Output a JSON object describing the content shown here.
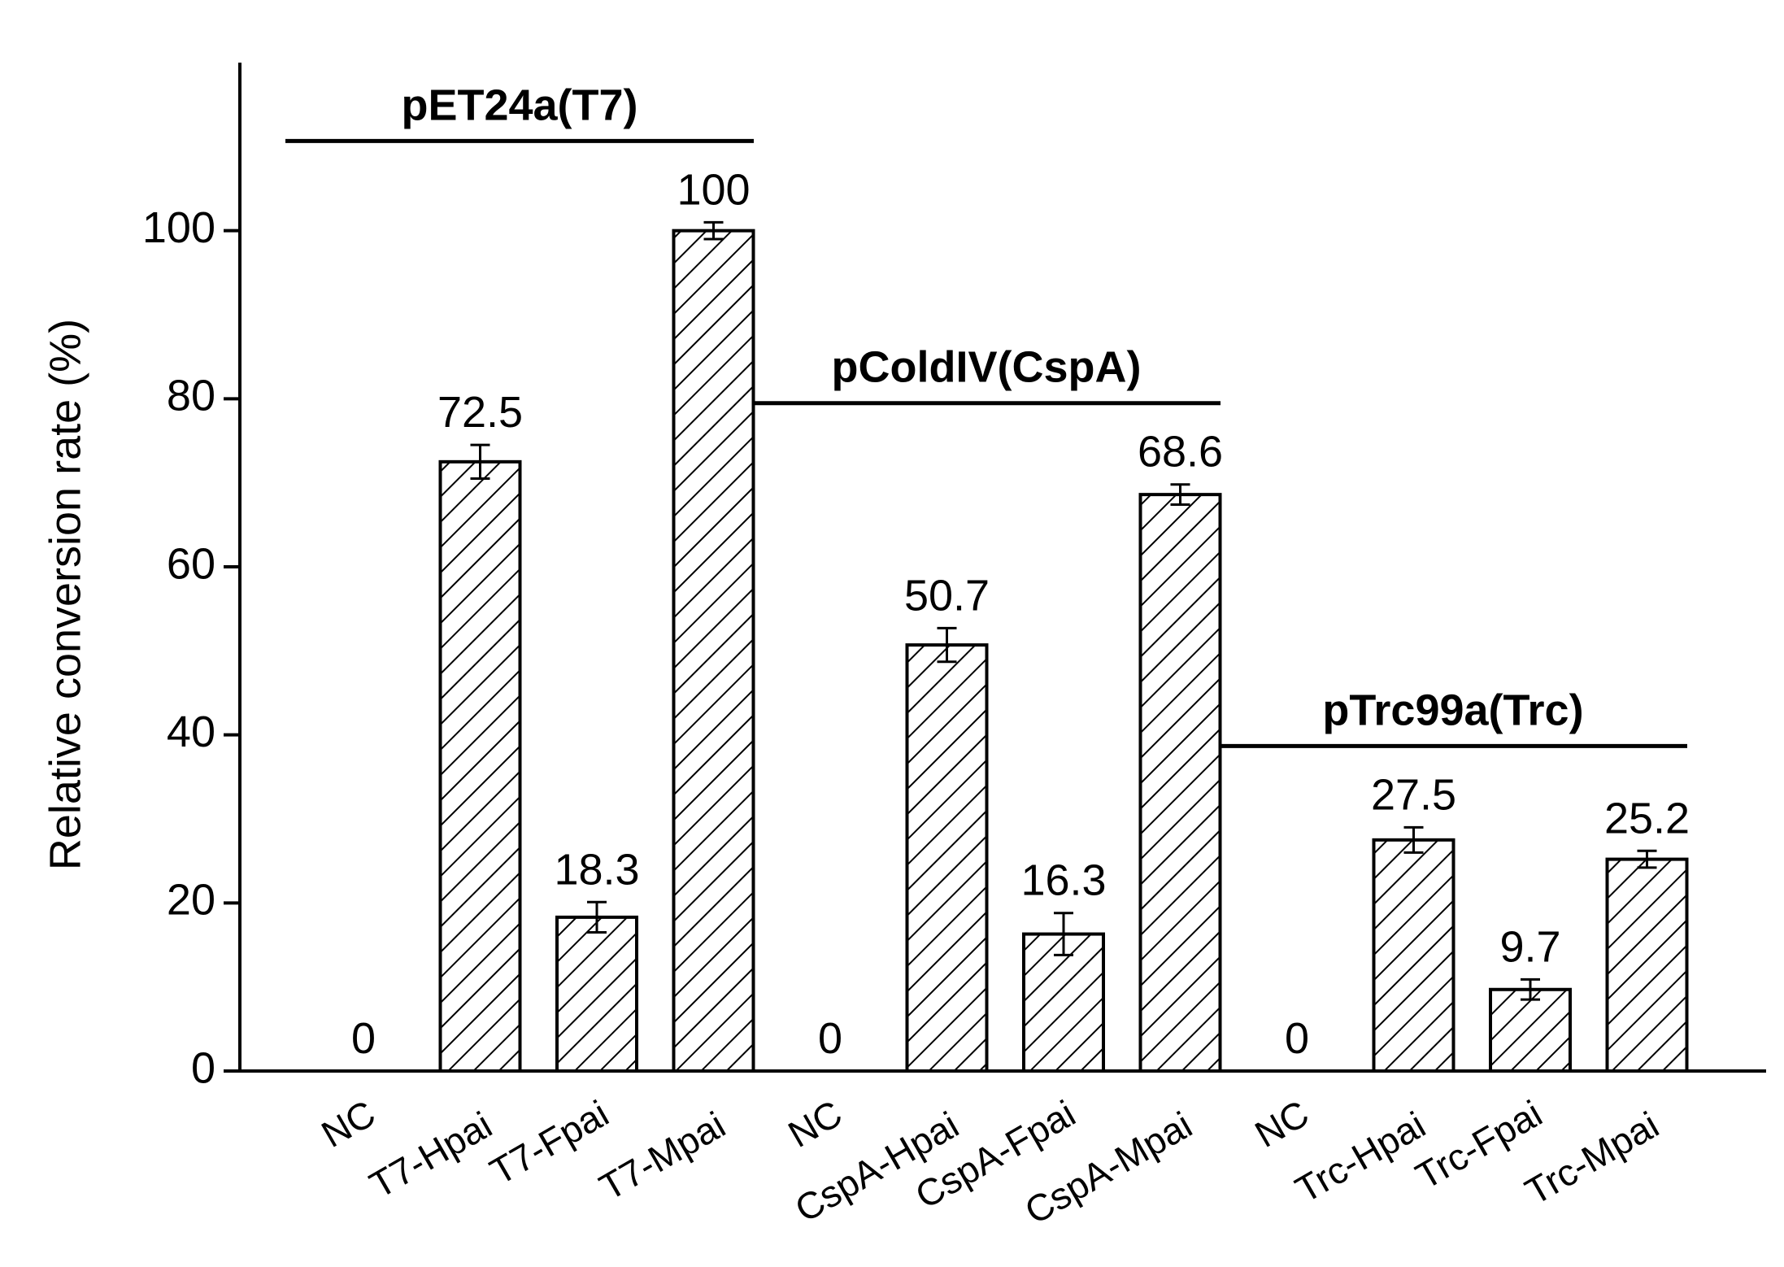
{
  "chart_data": {
    "type": "bar",
    "y_label": "Relative conversion rate (%)",
    "ylim": [
      0,
      120
    ],
    "yticks": [
      0,
      20,
      40,
      60,
      80,
      100
    ],
    "color": "#000000",
    "hatch": true,
    "groups": [
      {
        "label": "pET24a(T7)",
        "categories": [
          "NC",
          "T7-Hpai",
          "T7-Fpai",
          "T7-Mpai"
        ],
        "values": [
          0,
          72.5,
          18.3,
          100
        ],
        "errors": [
          null,
          2,
          1.8,
          1
        ]
      },
      {
        "label": "pColdIV(CspA)",
        "categories": [
          "NC",
          "CspA-Hpai",
          "CspA-Fpai",
          "CspA-Mpai"
        ],
        "values": [
          0,
          50.7,
          16.3,
          68.6
        ],
        "errors": [
          null,
          2,
          2.5,
          1.2
        ]
      },
      {
        "label": "pTrc99a(Trc)",
        "categories": [
          "NC",
          "Trc-Hpai",
          "Trc-Fpai",
          "Trc-Mpai"
        ],
        "values": [
          0,
          27.5,
          9.7,
          25.2
        ],
        "errors": [
          null,
          1.5,
          1.2,
          1
        ]
      }
    ]
  }
}
